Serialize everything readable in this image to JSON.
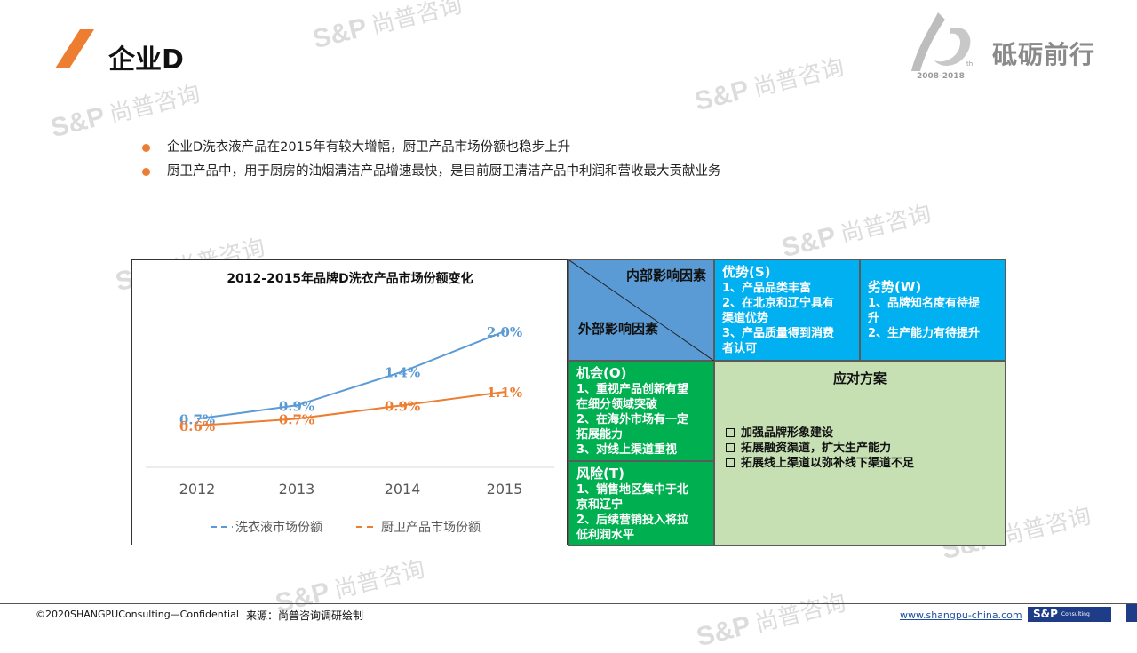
{
  "header": {
    "title": "企业D",
    "logo_text": "砥砺前行",
    "logo_years": "2008-2018",
    "logo_sup": "th"
  },
  "watermark": {
    "latin": "S&P",
    "cn": "尚普咨询"
  },
  "bullets": [
    "企业D洗衣液产品在2015年有较大增幅，厨卫产品市场份额也稳步上升",
    "厨卫产品中，用于厨房的油烟清洁产品增速最快，是目前厨卫清洁产品中利润和营收最大贡献业务"
  ],
  "chart_data": {
    "type": "line",
    "title": "2012-2015年品牌D洗衣产品市场份额变化",
    "categories": [
      "2012",
      "2013",
      "2014",
      "2015"
    ],
    "series": [
      {
        "name": "洗衣液市场份额",
        "values": [
          0.7,
          0.9,
          1.4,
          2.0
        ],
        "labels": [
          "0.7%",
          "0.9%",
          "1.4%",
          "2.0%"
        ],
        "color": "#5b9bd5"
      },
      {
        "name": "厨卫产品市场份额",
        "values": [
          0.6,
          0.7,
          0.9,
          1.1
        ],
        "labels": [
          "0.6%",
          "0.7%",
          "0.9%",
          "1.1%"
        ],
        "color": "#ed7d31"
      }
    ],
    "legend": "bottom",
    "grid": false
  },
  "swot": {
    "corner_top": "内部影响因素",
    "corner_bottom": "外部影响因素",
    "strengths": {
      "title": "优势(S)",
      "items": [
        "1、产品品类丰富",
        "2、在北京和辽宁具有",
        "渠道优势",
        "3、产品质量得到消费",
        "者认可"
      ]
    },
    "weaknesses": {
      "title": "劣势(W)",
      "items": [
        "1、品牌知名度有待提",
        "升",
        "2、生产能力有待提升"
      ]
    },
    "opportunities": {
      "title": "机会(O)",
      "items": [
        "1、重视产品创新有望",
        "在细分领域突破",
        "2、在海外市场有一定",
        "拓展能力",
        "3、对线上渠道重视"
      ]
    },
    "threats": {
      "title": "风险(T)",
      "items": [
        "1、销售地区集中于北",
        "京和辽宁",
        "2、后续营销投入将拉",
        "低利润水平"
      ]
    },
    "plan": {
      "title": "应对方案",
      "items": [
        "加强品牌形象建设",
        "拓展融资渠道，扩大生产能力",
        "拓展线上渠道以弥补线下渠道不足"
      ]
    }
  },
  "footer": {
    "copyright": "©2020SHANGPUConsulting—Confidential",
    "source": "来源：尚普咨询调研绘制",
    "url": "www.shangpu-china.com",
    "badge": "S&P",
    "badge_sub": "Consulting"
  },
  "colors": {
    "accent": "#ed7d31",
    "swot_blue": "#00b0f0",
    "swot_green": "#00b050",
    "plan_bg": "#c6e0b4",
    "corner_bg": "#5b9bd5"
  }
}
